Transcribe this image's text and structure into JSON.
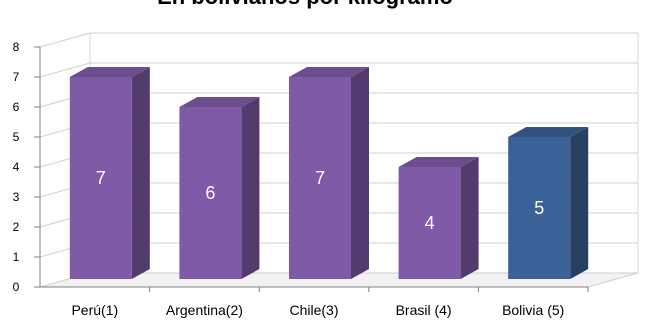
{
  "chart_data": {
    "type": "bar",
    "title": "En bolivianos por kilogramo",
    "categories": [
      "Perú(1)",
      "Argentina(2)",
      "Chile(3)",
      "Brasil (4)",
      "Bolivia (5)"
    ],
    "values": [
      7,
      6,
      7,
      4,
      5
    ],
    "data_labels": [
      "7",
      "6",
      "7",
      "4",
      "5"
    ],
    "ylim": [
      0,
      8
    ],
    "yticks": [
      "0",
      "1",
      "2",
      "3",
      "4",
      "5",
      "6",
      "7",
      "8"
    ],
    "grid": true,
    "style": "3d-column",
    "colors": [
      "#7f5aa7",
      "#7f5aa7",
      "#7f5aa7",
      "#7f5aa7",
      "#3a6297"
    ]
  }
}
